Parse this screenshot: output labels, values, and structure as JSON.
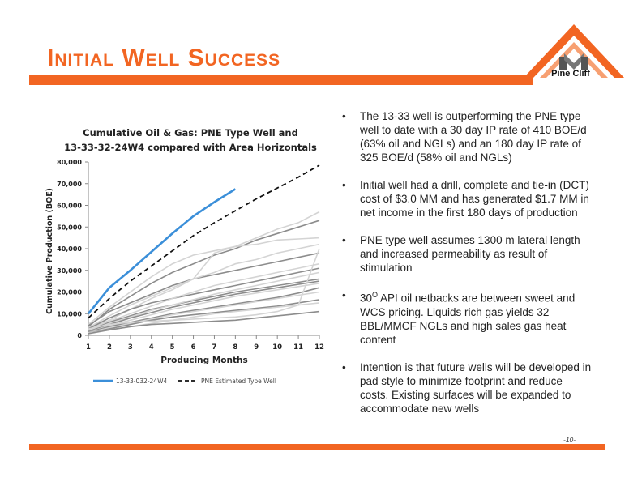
{
  "slide": {
    "title": "Initial Well Success",
    "page_number": "-10-",
    "accent_color": "#f26522"
  },
  "logo": {
    "text": "Pine Cliff"
  },
  "bullets": [
    {
      "text": "The 13-33 well is outperforming the PNE type well to date with a 30 day IP rate of 410 BOE/d (63% oil and NGLs) and an 180 day IP rate of 325 BOE/d (58% oil and NGLs)"
    },
    {
      "text": "Initial well had a drill, complete and tie-in (DCT) cost of $3.0 MM and has generated $1.7 MM in net income in the first 180 days of production"
    },
    {
      "text": "PNE type well assumes 1300 m lateral length and increased permeability as result of stimulation"
    },
    {
      "pre": "30",
      "sup": "O",
      "post": " API oil netbacks are between sweet and WCS pricing.  Liquids rich gas yields 32 BBL/MMCF NGLs and high sales gas heat content"
    },
    {
      "text": "Intention is that future wells will be developed in pad style to minimize footprint and reduce costs.  Existing surfaces will be expanded to accommodate new wells"
    }
  ],
  "chart_data": {
    "type": "line",
    "title_lines": [
      "Cumulative Oil & Gas: PNE Type Well and",
      "13-33-32-24W4 compared with Area Horizontals"
    ],
    "xlabel": "Producing Months",
    "ylabel": "Cumulative Production (BOE)",
    "x": [
      1,
      2,
      3,
      4,
      5,
      6,
      7,
      8,
      9,
      10,
      11,
      12
    ],
    "xlim": [
      1,
      12
    ],
    "ylim": [
      0,
      80000
    ],
    "yticks": [
      0,
      10000,
      20000,
      30000,
      40000,
      50000,
      60000,
      70000,
      80000
    ],
    "ytick_labels": [
      "0",
      "10,000",
      "20,000",
      "30,000",
      "40,000",
      "50,000",
      "60,000",
      "70,000",
      "80,000"
    ],
    "xtick_labels": [
      "1",
      "2",
      "3",
      "4",
      "5",
      "6",
      "7",
      "8",
      "9",
      "10",
      "11",
      "12"
    ],
    "legend_position": "bottom",
    "series": [
      {
        "name": "13-33-032-24W4",
        "color": "#3b8fd9",
        "style": "solid",
        "legend": true,
        "values": [
          10000,
          22000,
          30000,
          38500,
          47000,
          55000,
          61500,
          67500,
          null,
          null,
          null,
          null
        ]
      },
      {
        "name": "PNE Estimated Type Well",
        "color": "#111111",
        "style": "dashed",
        "legend": true,
        "values": [
          8000,
          17000,
          25000,
          32000,
          39000,
          46000,
          52000,
          57500,
          63000,
          68000,
          73000,
          78500
        ]
      }
    ],
    "area_horizontals": {
      "color_light": "#d4d4d4",
      "color_dark": "#8c8c8c",
      "lines": [
        {
          "shade": "light",
          "values": [
            5000,
            13000,
            20000,
            27000,
            33000,
            37000,
            39000,
            41000,
            45000,
            49000,
            52000,
            57000
          ]
        },
        {
          "shade": "dark",
          "values": [
            4000,
            12000,
            18000,
            24000,
            29000,
            33000,
            37000,
            40000,
            44000,
            47000,
            50000,
            53000
          ]
        },
        {
          "shade": "light",
          "values": [
            3000,
            7000,
            12000,
            17000,
            21000,
            26000,
            38000,
            41000,
            42000,
            44000,
            44500,
            45000
          ]
        },
        {
          "shade": "dark",
          "values": [
            4500,
            11000,
            15000,
            19000,
            23000,
            26000,
            28000,
            30000,
            32000,
            34000,
            36000,
            38000
          ]
        },
        {
          "shade": "light",
          "values": [
            3500,
            9000,
            14000,
            18000,
            22000,
            26000,
            29000,
            33000,
            35000,
            38000,
            40000,
            42000
          ]
        },
        {
          "shade": "dark",
          "values": [
            3000,
            8000,
            12000,
            15000,
            17000,
            19000,
            21000,
            23000,
            25000,
            27000,
            29000,
            31000
          ]
        },
        {
          "shade": "light",
          "values": [
            2500,
            6500,
            10000,
            13500,
            17000,
            20000,
            23000,
            25000,
            27000,
            29000,
            31000,
            33000
          ]
        },
        {
          "shade": "dark",
          "values": [
            2000,
            6000,
            9000,
            12000,
            14000,
            16000,
            18000,
            20000,
            21500,
            23000,
            24500,
            26000
          ]
        },
        {
          "shade": "light",
          "values": [
            2200,
            5500,
            8500,
            11500,
            14000,
            16500,
            19000,
            21000,
            23000,
            25000,
            27000,
            29000
          ]
        },
        {
          "shade": "dark",
          "values": [
            1800,
            5000,
            8000,
            10500,
            13000,
            15000,
            17000,
            19000,
            20500,
            22000,
            23500,
            25000
          ]
        },
        {
          "shade": "light",
          "values": [
            1500,
            4500,
            7000,
            9500,
            12000,
            14000,
            16000,
            18000,
            19500,
            21000,
            22500,
            24000
          ]
        },
        {
          "shade": "dark",
          "values": [
            1500,
            4000,
            6000,
            8000,
            10000,
            11500,
            13000,
            14500,
            16000,
            17500,
            19500,
            22000
          ]
        },
        {
          "shade": "light",
          "values": [
            1200,
            3500,
            5500,
            7500,
            9500,
            11000,
            12500,
            14000,
            15500,
            17000,
            18500,
            20000
          ]
        },
        {
          "shade": "dark",
          "values": [
            1000,
            3000,
            5000,
            7000,
            8500,
            9500,
            10500,
            11500,
            12500,
            13500,
            15000,
            16500
          ]
        },
        {
          "shade": "light",
          "values": [
            1000,
            2500,
            4000,
            5500,
            7000,
            8500,
            10000,
            11000,
            12000,
            13000,
            14000,
            15000
          ]
        },
        {
          "shade": "dark",
          "values": [
            800,
            2500,
            4000,
            5000,
            5500,
            6000,
            6500,
            7000,
            8000,
            9000,
            10000,
            11000
          ]
        },
        {
          "shade": "light",
          "values": [
            3000,
            5000,
            6000,
            6500,
            7000,
            7500,
            8000,
            8500,
            9500,
            11000,
            14000,
            40000
          ]
        }
      ]
    }
  }
}
